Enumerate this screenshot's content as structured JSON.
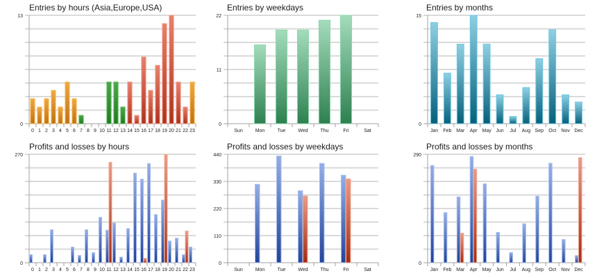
{
  "colors": {
    "gridDark": "#b4b4b4",
    "gridLight": "#d9d9d9",
    "axis": "#a0a0a0",
    "label": "#222222"
  },
  "chart_data": [
    {
      "id": "entries-hours",
      "type": "bar",
      "title": "Entries by hours (Asia,Europe,USA)",
      "xlabel": "",
      "ylabel": "",
      "ylim": [
        0,
        13
      ],
      "yticks": [
        0,
        13
      ],
      "grid": true,
      "categories": [
        "0",
        "1",
        "2",
        "3",
        "4",
        "5",
        "6",
        "7",
        "8",
        "9",
        "10",
        "11",
        "12",
        "13",
        "14",
        "15",
        "16",
        "17",
        "18",
        "19",
        "20",
        "21",
        "22",
        "23"
      ],
      "series": [
        {
          "name": "Entries",
          "values": [
            3,
            2,
            3,
            4,
            2,
            5,
            3,
            1,
            0,
            0,
            0,
            5,
            5,
            2,
            5,
            1,
            8,
            4,
            7,
            12,
            13,
            5,
            2,
            5
          ],
          "region": [
            "Asia",
            "Asia",
            "Asia",
            "Asia",
            "Asia",
            "Asia",
            "Asia",
            "Europe",
            "Europe",
            "Europe",
            "Europe",
            "Europe",
            "Europe",
            "Europe",
            "USA",
            "USA",
            "USA",
            "USA",
            "USA",
            "USA",
            "USA",
            "USA",
            "USA",
            "Asia"
          ]
        }
      ],
      "region_colors": {
        "Asia": {
          "top": "#f0a840",
          "bottom": "#c07010",
          "border": "#f6b95a"
        },
        "Europe": {
          "top": "#4aa84a",
          "bottom": "#1e7a1e",
          "border": "#5cb85c"
        },
        "USA": {
          "top": "#e8806a",
          "bottom": "#b0301c",
          "border": "#ee9986"
        }
      }
    },
    {
      "id": "entries-weekdays",
      "type": "bar",
      "title": "Entries by weekdays",
      "xlabel": "",
      "ylabel": "",
      "ylim": [
        0,
        22
      ],
      "yticks": [
        0,
        11,
        22
      ],
      "grid": true,
      "categories": [
        "Sun",
        "Mon",
        "Tue",
        "Wed",
        "Thu",
        "Fri",
        "Sat"
      ],
      "series": [
        {
          "name": "Entries",
          "values": [
            0,
            16,
            19,
            19,
            21,
            22,
            0
          ],
          "color": {
            "top": "#a4dcbc",
            "bottom": "#2e8050",
            "border": "#8ad8aa"
          }
        }
      ]
    },
    {
      "id": "entries-months",
      "type": "bar",
      "title": "Entries by months",
      "xlabel": "",
      "ylabel": "",
      "ylim": [
        0,
        15
      ],
      "yticks": [
        0,
        15
      ],
      "grid": true,
      "categories": [
        "Jan",
        "Feb",
        "Mar",
        "Apr",
        "May",
        "Jun",
        "Jul",
        "Aug",
        "Sep",
        "Oct",
        "Nov",
        "Dec"
      ],
      "series": [
        {
          "name": "Entries",
          "values": [
            14,
            7,
            11,
            15,
            11,
            4,
            1,
            5,
            9,
            13,
            4,
            3
          ],
          "color": {
            "top": "#8ed0e4",
            "bottom": "#06607a",
            "border": "#6cc6e0"
          }
        }
      ]
    },
    {
      "id": "pl-hours",
      "type": "bar",
      "title": "Profits and losses by hours",
      "xlabel": "",
      "ylabel": "",
      "ylim": [
        0,
        270
      ],
      "yticks": [
        0,
        270
      ],
      "grid": true,
      "categories": [
        "0",
        "1",
        "2",
        "3",
        "4",
        "5",
        "6",
        "7",
        "8",
        "9",
        "10",
        "11",
        "12",
        "13",
        "14",
        "15",
        "16",
        "17",
        "18",
        "19",
        "20",
        "21",
        "22",
        "23"
      ],
      "series": [
        {
          "name": "Profits",
          "values": [
            20,
            0,
            20,
            82,
            0,
            0,
            39,
            18,
            82,
            25,
            113,
            81,
            99,
            14,
            85,
            223,
            208,
            247,
            120,
            156,
            54,
            61,
            20,
            39
          ],
          "color": {
            "top": "#94aee6",
            "bottom": "#22449a",
            "border": "#a6bcec"
          }
        },
        {
          "name": "Losses",
          "values": [
            0,
            0,
            0,
            0,
            0,
            0,
            0,
            0,
            0,
            0,
            0,
            250,
            0,
            0,
            0,
            0,
            11,
            0,
            0,
            270,
            0,
            0,
            79,
            0
          ],
          "color": {
            "top": "#eb9a86",
            "bottom": "#a42c12",
            "border": "#f0a894"
          }
        }
      ]
    },
    {
      "id": "pl-weekdays",
      "type": "bar",
      "title": "Profits and losses by weekdays",
      "xlabel": "",
      "ylabel": "",
      "ylim": [
        0,
        440
      ],
      "yticks": [
        0,
        110,
        220,
        330,
        440
      ],
      "grid": true,
      "categories": [
        "Sun",
        "Mon",
        "Tue",
        "Wed",
        "Thu",
        "Fri",
        "Sat"
      ],
      "series": [
        {
          "name": "Profits",
          "values": [
            0,
            318,
            433,
            292,
            403,
            355,
            0
          ],
          "color": {
            "top": "#94aee6",
            "bottom": "#22449a",
            "border": "#a6bcec"
          }
        },
        {
          "name": "Losses",
          "values": [
            0,
            0,
            0,
            271,
            0,
            340,
            0
          ],
          "color": {
            "top": "#eb9a86",
            "bottom": "#a42c12",
            "border": "#f0a894"
          }
        }
      ]
    },
    {
      "id": "pl-months",
      "type": "bar",
      "title": "Profits and losses by months",
      "xlabel": "",
      "ylabel": "",
      "ylim": [
        0,
        290
      ],
      "yticks": [
        0,
        290
      ],
      "grid": true,
      "categories": [
        "Jan",
        "Feb",
        "Mar",
        "Apr",
        "May",
        "Jun",
        "Jul",
        "Aug",
        "Sep",
        "Oct",
        "Nov",
        "Dec"
      ],
      "series": [
        {
          "name": "Profits",
          "values": [
            260,
            134,
            176,
            284,
            211,
            81,
            27,
            104,
            178,
            266,
            62,
            19
          ],
          "color": {
            "top": "#94aee6",
            "bottom": "#22449a",
            "border": "#a6bcec"
          }
        },
        {
          "name": "Losses",
          "values": [
            0,
            0,
            79,
            250,
            0,
            0,
            0,
            0,
            0,
            0,
            0,
            281
          ],
          "color": {
            "top": "#eb9a86",
            "bottom": "#a42c12",
            "border": "#f0a894"
          }
        }
      ]
    }
  ]
}
